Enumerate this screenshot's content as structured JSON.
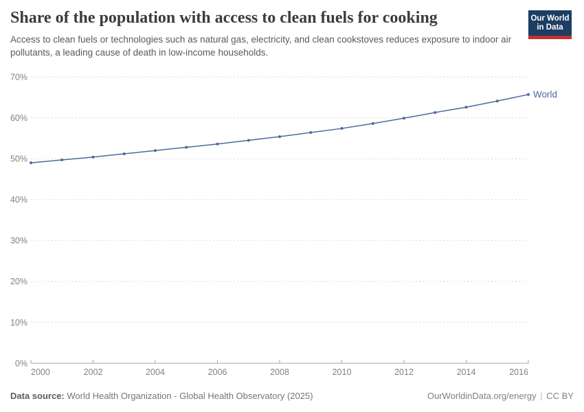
{
  "header": {
    "title": "Share of the population with access to clean fuels for cooking",
    "subtitle": "Access to clean fuels or technologies such as natural gas, electricity, and clean cookstoves reduces exposure to indoor air pollutants, a leading cause of death in low-income households.",
    "logo": {
      "line1": "Our World",
      "line2": "in Data",
      "bg_color": "#1d3d63",
      "stripe_color": "#c4302b"
    }
  },
  "chart_data": {
    "type": "line",
    "title": "Share of the population with access to clean fuels for cooking",
    "xlabel": "",
    "ylabel": "",
    "xlim": [
      2000,
      2016
    ],
    "ylim": [
      0,
      70
    ],
    "x_ticks": [
      2000,
      2002,
      2004,
      2006,
      2008,
      2010,
      2012,
      2014,
      2016
    ],
    "y_ticks": [
      0,
      10,
      20,
      30,
      40,
      50,
      60,
      70
    ],
    "y_tick_suffix": "%",
    "grid": "horizontal-dashed",
    "legend_position": "end-of-line-label",
    "x": [
      2000,
      2001,
      2002,
      2003,
      2004,
      2005,
      2006,
      2007,
      2008,
      2009,
      2010,
      2011,
      2012,
      2013,
      2014,
      2015,
      2016
    ],
    "series": [
      {
        "name": "World",
        "color": "#4C6A9C",
        "values": [
          49.0,
          49.7,
          50.4,
          51.2,
          52.0,
          52.8,
          53.6,
          54.5,
          55.4,
          56.4,
          57.4,
          58.6,
          59.9,
          61.3,
          62.6,
          64.1,
          65.7
        ]
      }
    ]
  },
  "footer": {
    "source_label": "Data source:",
    "source_text": "World Health Organization - Global Health Observatory (2025)",
    "link_text": "OurWorldinData.org/energy",
    "separator": "|",
    "license": "CC BY"
  },
  "colors": {
    "line": "#4C6A9C",
    "gridline": "#dadada",
    "axis": "#a5a5a5",
    "tick_label": "#818181",
    "title": "#3b3b3b",
    "subtitle": "#5a5a5a",
    "footer": "#757575",
    "logo_bg": "#1d3d63",
    "logo_stripe": "#c4302b"
  }
}
